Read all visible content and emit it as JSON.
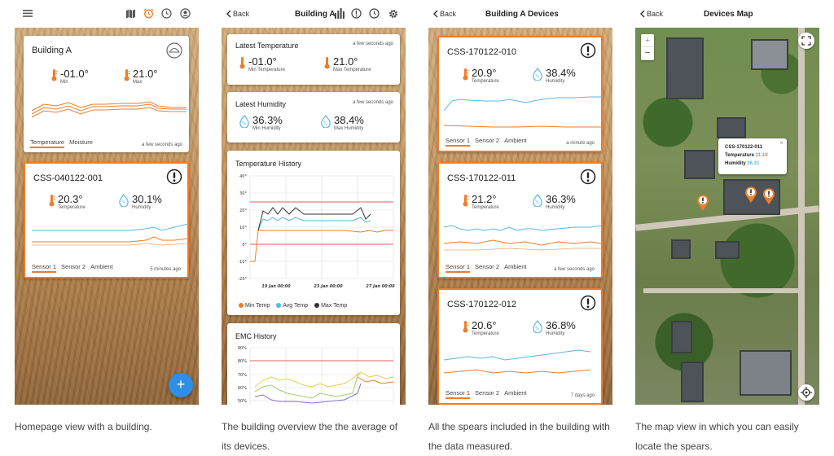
{
  "accent": "#ef7d29",
  "blue": "#5ab7e3",
  "screen1": {
    "card": {
      "title": "Building A",
      "min_val": "-01.0°",
      "min_lbl": "Min",
      "max_val": "21.0°",
      "max_lbl": "Max",
      "tab1": "Temperature",
      "tab2": "Moisture",
      "stamp": "a few seconds ago"
    },
    "device": {
      "title": "CSS-040122-001",
      "temp": "20.3°",
      "temp_lbl": "Temperature",
      "hum": "30.1%",
      "hum_lbl": "Humidity",
      "tab1": "Sensor 1",
      "tab2": "Sensor 2",
      "tab3": "Ambient",
      "stamp": "5 minutes ago"
    },
    "fab": "+",
    "caption": "Homepage view with a building."
  },
  "screen2": {
    "back": "Back",
    "title": "Building A",
    "temp_card": {
      "title": "Latest Temperature",
      "stamp": "a few seconds ago",
      "min_val": "-01.0°",
      "min_lbl": "Min Temperature",
      "max_val": "21.0°",
      "max_lbl": "Max Temperature"
    },
    "hum_card": {
      "title": "Latest Humidity",
      "stamp": "a few seconds ago",
      "min_val": "36.3%",
      "min_lbl": "Min Humidity",
      "max_val": "38.4%",
      "max_lbl": "Max Humidity"
    },
    "temp_history": {
      "title": "Temperature History",
      "yticks": [
        "40°",
        "30°",
        "20°",
        "10°",
        "0°",
        "-10°",
        "-20°"
      ],
      "xticks": [
        "19 Jan 00:00",
        "23 Jan 00:00",
        "27 Jan 00:00"
      ],
      "legend": [
        "Min Temp",
        "Avg Temp",
        "Max Temp"
      ]
    },
    "emc_history": {
      "title": "EMC History",
      "yticks": [
        "90%",
        "80%",
        "70%",
        "60%",
        "50%"
      ]
    },
    "caption": "The building overview the the average of its devices."
  },
  "screen3": {
    "back": "Back",
    "title": "Building A Devices",
    "devices": [
      {
        "title": "CSS-170122-010",
        "temp": "20.9°",
        "temp_lbl": "Temperature",
        "hum": "38.4%",
        "hum_lbl": "Humidity",
        "tab1": "Sensor 1",
        "tab2": "Sensor 2",
        "tab3": "Ambient",
        "stamp": "a minute ago"
      },
      {
        "title": "CSS-170122-011",
        "temp": "21.2°",
        "temp_lbl": "Temperature",
        "hum": "36.3%",
        "hum_lbl": "Humidity",
        "tab1": "Sensor 1",
        "tab2": "Sensor 2",
        "tab3": "Ambient",
        "stamp": "a few seconds ago"
      },
      {
        "title": "CSS-170122-012",
        "temp": "20.6°",
        "temp_lbl": "Temperature",
        "hum": "36.8%",
        "hum_lbl": "Humidity",
        "tab1": "Sensor 1",
        "tab2": "Sensor 2",
        "tab3": "Ambient",
        "stamp": "7 days ago"
      }
    ],
    "caption": "All the spears included in the building with the data measured."
  },
  "screen4": {
    "back": "Back",
    "title": "Devices Map",
    "zoom_in": "+",
    "zoom_out": "−",
    "popup": {
      "title": "CSS-170122-011",
      "temp_lbl": "Temperature",
      "temp_val": "21.19",
      "hum_lbl": "Humidity",
      "hum_val": "36.31",
      "close": "×"
    },
    "caption": "The map view in which you can easily locate the spears."
  }
}
